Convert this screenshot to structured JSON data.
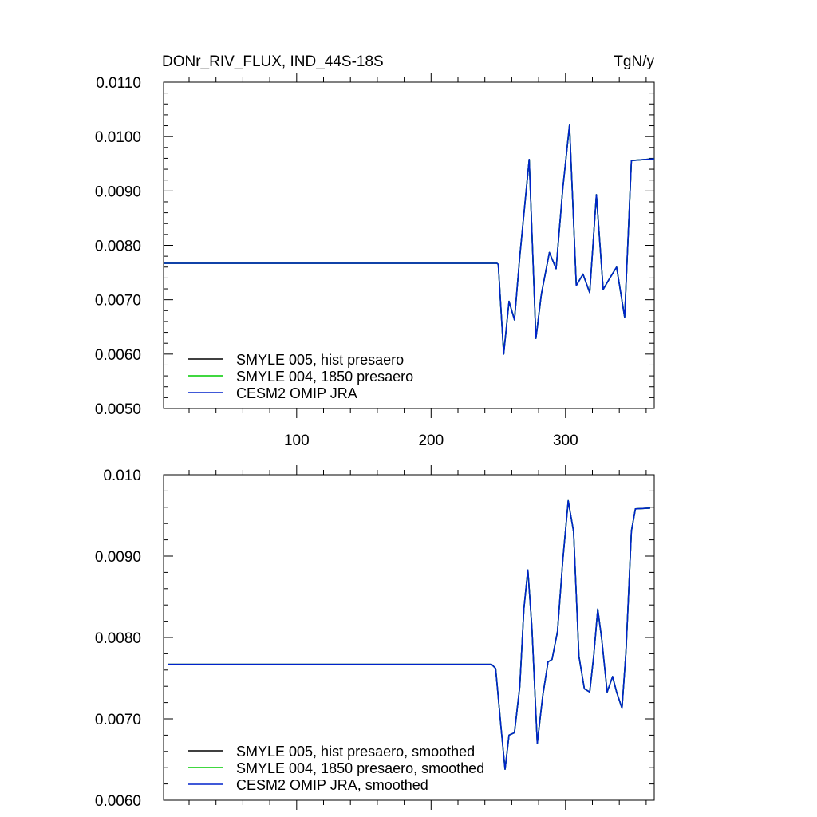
{
  "chart_data": [
    {
      "type": "line",
      "title": "DONr_RIV_FLUX, IND_44S-18S",
      "units": "TgN/y",
      "xlabel": "",
      "ylabel": "",
      "xlim": [
        1,
        366
      ],
      "ylim": [
        0.005,
        0.011
      ],
      "xticks": [
        100,
        200,
        300
      ],
      "xtick_labels": [
        "100",
        "200",
        "300"
      ],
      "yticks": [
        0.005,
        0.006,
        0.007,
        0.008,
        0.009,
        0.01,
        0.011
      ],
      "ytick_labels": [
        "0.0050",
        "0.0060",
        "0.0070",
        "0.0080",
        "0.0090",
        "0.0100",
        "0.0110"
      ],
      "grid": false,
      "legend_position": "bottom-left",
      "legend": [
        "SMYLE 005, hist presaero",
        "SMYLE 004, 1850 presaero",
        "CESM2 OMIP JRA"
      ],
      "series": [
        {
          "name": "SMYLE 005, hist presaero",
          "color": "#000000",
          "x": [
            1,
            249,
            250,
            254,
            258,
            262,
            266,
            273,
            278,
            282,
            288,
            293,
            298,
            303,
            308,
            313,
            318,
            323,
            328,
            333,
            338,
            344,
            349,
            366
          ],
          "y": [
            0.00767,
            0.00767,
            0.00765,
            0.006,
            0.00697,
            0.00663,
            0.0078,
            0.00958,
            0.00629,
            0.0071,
            0.00787,
            0.00757,
            0.00905,
            0.01021,
            0.00726,
            0.00747,
            0.00713,
            0.00893,
            0.00719,
            0.0074,
            0.0076,
            0.00668,
            0.00956,
            0.00959
          ]
        },
        {
          "name": "SMYLE 004, 1850 presaero",
          "color": "#00cc00",
          "x": [
            1,
            249,
            250,
            254,
            258,
            262,
            266,
            273,
            278,
            282,
            288,
            293,
            298,
            303,
            308,
            313,
            318,
            323,
            328,
            333,
            338,
            344,
            349,
            366
          ],
          "y": [
            0.00767,
            0.00767,
            0.00765,
            0.006,
            0.00697,
            0.00663,
            0.0078,
            0.00958,
            0.00629,
            0.0071,
            0.00787,
            0.00757,
            0.00905,
            0.01021,
            0.00726,
            0.00747,
            0.00713,
            0.00893,
            0.00719,
            0.0074,
            0.0076,
            0.00668,
            0.00956,
            0.00959
          ]
        },
        {
          "name": "CESM2 OMIP JRA",
          "color": "#0022cc",
          "x": [
            1,
            249,
            250,
            254,
            258,
            262,
            266,
            273,
            278,
            282,
            288,
            293,
            298,
            303,
            308,
            313,
            318,
            323,
            328,
            333,
            338,
            344,
            349,
            366
          ],
          "y": [
            0.00767,
            0.00767,
            0.00765,
            0.006,
            0.00697,
            0.00663,
            0.0078,
            0.00958,
            0.00629,
            0.0071,
            0.00787,
            0.00757,
            0.00905,
            0.01021,
            0.00726,
            0.00747,
            0.00713,
            0.00893,
            0.00719,
            0.0074,
            0.0076,
            0.00668,
            0.00956,
            0.00959
          ]
        }
      ]
    },
    {
      "type": "line",
      "title": "",
      "units": "",
      "xlabel": "",
      "ylabel": "",
      "xlim": [
        1,
        366
      ],
      "ylim": [
        0.006,
        0.01
      ],
      "xticks": [
        100,
        200,
        300
      ],
      "xtick_labels": [
        "",
        "",
        ""
      ],
      "yticks": [
        0.006,
        0.007,
        0.008,
        0.009,
        0.01
      ],
      "ytick_labels": [
        "0.0060",
        "0.0070",
        "0.0080",
        "0.0090",
        "0.010"
      ],
      "grid": false,
      "legend_position": "bottom-left",
      "legend": [
        "SMYLE 005, hist presaero, smoothed",
        "SMYLE 004, 1850 presaero, smoothed",
        "CESM2 OMIP JRA, smoothed"
      ],
      "series": [
        {
          "name": "SMYLE 005, hist presaero, smoothed",
          "color": "#000000",
          "x": [
            4,
            245,
            248,
            252,
            255,
            258,
            262,
            266,
            269,
            272,
            275,
            279,
            283,
            287,
            290,
            294,
            298,
            302,
            306,
            310,
            314,
            318,
            321,
            324,
            327,
            331,
            335,
            338,
            342,
            345,
            349,
            352,
            363
          ],
          "y": [
            0.00767,
            0.00767,
            0.00762,
            0.0069,
            0.00638,
            0.0068,
            0.00683,
            0.0074,
            0.00835,
            0.00883,
            0.00812,
            0.0067,
            0.00728,
            0.0077,
            0.00773,
            0.00807,
            0.00895,
            0.00968,
            0.0093,
            0.00777,
            0.00737,
            0.00733,
            0.00778,
            0.00835,
            0.00797,
            0.00733,
            0.00752,
            0.00733,
            0.00713,
            0.00783,
            0.00931,
            0.00958,
            0.00959
          ]
        },
        {
          "name": "SMYLE 004, 1850 presaero, smoothed",
          "color": "#00cc00",
          "x": [
            4,
            245,
            248,
            252,
            255,
            258,
            262,
            266,
            269,
            272,
            275,
            279,
            283,
            287,
            290,
            294,
            298,
            302,
            306,
            310,
            314,
            318,
            321,
            324,
            327,
            331,
            335,
            338,
            342,
            345,
            349,
            352,
            363
          ],
          "y": [
            0.00767,
            0.00767,
            0.00762,
            0.0069,
            0.00638,
            0.0068,
            0.00683,
            0.0074,
            0.00835,
            0.00883,
            0.00812,
            0.0067,
            0.00728,
            0.0077,
            0.00773,
            0.00807,
            0.00895,
            0.00968,
            0.0093,
            0.00777,
            0.00737,
            0.00733,
            0.00778,
            0.00835,
            0.00797,
            0.00733,
            0.00752,
            0.00733,
            0.00713,
            0.00783,
            0.00931,
            0.00958,
            0.00959
          ]
        },
        {
          "name": "CESM2 OMIP JRA, smoothed",
          "color": "#0022cc",
          "x": [
            4,
            245,
            248,
            252,
            255,
            258,
            262,
            266,
            269,
            272,
            275,
            279,
            283,
            287,
            290,
            294,
            298,
            302,
            306,
            310,
            314,
            318,
            321,
            324,
            327,
            331,
            335,
            338,
            342,
            345,
            349,
            352,
            363
          ],
          "y": [
            0.00767,
            0.00767,
            0.00762,
            0.0069,
            0.00638,
            0.0068,
            0.00683,
            0.0074,
            0.00835,
            0.00883,
            0.00812,
            0.0067,
            0.00728,
            0.0077,
            0.00773,
            0.00807,
            0.00895,
            0.00968,
            0.0093,
            0.00777,
            0.00737,
            0.00733,
            0.00778,
            0.00835,
            0.00797,
            0.00733,
            0.00752,
            0.00733,
            0.00713,
            0.00783,
            0.00931,
            0.00958,
            0.00959
          ]
        }
      ]
    }
  ]
}
